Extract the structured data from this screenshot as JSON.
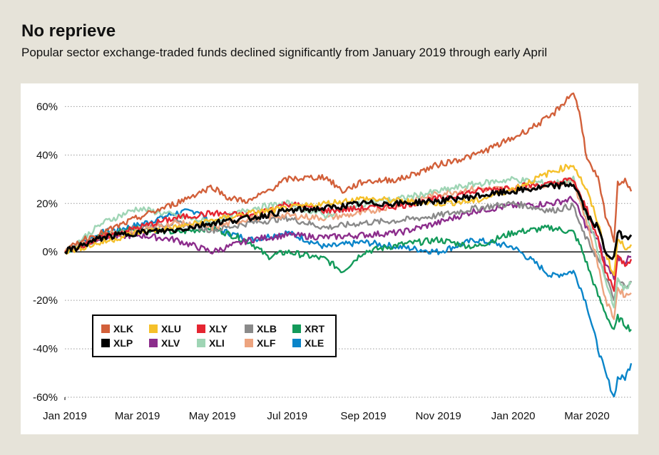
{
  "header": {
    "title": "No reprieve",
    "subtitle": "Popular sector exchange-traded funds declined significantly from January 2019 through early April"
  },
  "chart_data": {
    "type": "line",
    "title": "No reprieve",
    "subtitle": "Popular sector exchange-traded funds declined significantly from January 2019 through early April",
    "xlabel": "",
    "ylabel": "",
    "x_range": [
      "2019-01-01",
      "2020-04-06"
    ],
    "ylim": [
      -60,
      66
    ],
    "y_ticks": [
      60,
      40,
      20,
      0,
      -20,
      -40,
      -60
    ],
    "y_tick_labels": [
      "60%",
      "40%",
      "20%",
      "0%",
      "-20%",
      "-40%",
      "-60%"
    ],
    "x_tick_dates": [
      "2019-01-01",
      "2019-03-01",
      "2019-05-01",
      "2019-07-01",
      "2019-09-01",
      "2019-11-01",
      "2020-01-01",
      "2020-03-01"
    ],
    "x_tick_labels": [
      "Jan 2019",
      "Mar 2019",
      "May 2019",
      "Jul 2019",
      "Sep 2019",
      "Nov 2019",
      "Jan 2020",
      "Mar 2020"
    ],
    "grid": "horizontal dotted",
    "legend_position": "lower-left",
    "series": [
      {
        "name": "XLK",
        "color": "#d2603a",
        "x": [
          "2019-01-01",
          "2019-01-15",
          "2019-02-01",
          "2019-03-01",
          "2019-04-01",
          "2019-05-01",
          "2019-05-15",
          "2019-06-01",
          "2019-07-01",
          "2019-08-01",
          "2019-08-15",
          "2019-09-01",
          "2019-10-01",
          "2019-11-01",
          "2019-12-01",
          "2020-01-01",
          "2020-02-01",
          "2020-02-19",
          "2020-02-25",
          "2020-03-01",
          "2020-03-10",
          "2020-03-16",
          "2020-03-23",
          "2020-03-26",
          "2020-04-01",
          "2020-04-06"
        ],
        "values": [
          0,
          5,
          8,
          14,
          20,
          27,
          22,
          21,
          30,
          31,
          25,
          29,
          30,
          36,
          40,
          47,
          56,
          66,
          55,
          38,
          30,
          15,
          5,
          28,
          30,
          25
        ]
      },
      {
        "name": "XLU",
        "color": "#f5c02a",
        "x": [
          "2019-01-01",
          "2019-02-01",
          "2019-03-01",
          "2019-04-01",
          "2019-05-01",
          "2019-06-01",
          "2019-07-01",
          "2019-08-01",
          "2019-09-01",
          "2019-10-01",
          "2019-11-01",
          "2019-12-01",
          "2020-01-01",
          "2020-02-01",
          "2020-02-19",
          "2020-02-25",
          "2020-03-01",
          "2020-03-10",
          "2020-03-16",
          "2020-03-23",
          "2020-03-26",
          "2020-04-01",
          "2020-04-06"
        ],
        "values": [
          0,
          4,
          8,
          10,
          13,
          16,
          18,
          20,
          22,
          21,
          20,
          21,
          26,
          33,
          36,
          30,
          25,
          12,
          0,
          -10,
          5,
          2,
          3
        ]
      },
      {
        "name": "XLY",
        "color": "#e52531",
        "x": [
          "2019-01-01",
          "2019-02-01",
          "2019-03-01",
          "2019-04-01",
          "2019-05-01",
          "2019-06-01",
          "2019-07-01",
          "2019-08-01",
          "2019-09-01",
          "2019-10-01",
          "2019-11-01",
          "2019-12-01",
          "2020-01-01",
          "2020-02-01",
          "2020-02-19",
          "2020-02-25",
          "2020-03-01",
          "2020-03-10",
          "2020-03-16",
          "2020-03-23",
          "2020-03-26",
          "2020-04-01",
          "2020-04-06"
        ],
        "values": [
          0,
          6,
          10,
          14,
          16,
          15,
          20,
          17,
          18,
          19,
          22,
          25,
          27,
          28,
          30,
          22,
          18,
          5,
          -8,
          -15,
          -2,
          -5,
          -3
        ]
      },
      {
        "name": "XLB",
        "color": "#8a8a8a",
        "x": [
          "2019-01-01",
          "2019-02-01",
          "2019-03-01",
          "2019-04-01",
          "2019-05-01",
          "2019-06-01",
          "2019-07-01",
          "2019-08-01",
          "2019-09-01",
          "2019-10-01",
          "2019-11-01",
          "2019-12-01",
          "2020-01-01",
          "2020-02-01",
          "2020-02-19",
          "2020-02-25",
          "2020-03-01",
          "2020-03-10",
          "2020-03-16",
          "2020-03-23",
          "2020-03-26",
          "2020-04-01",
          "2020-04-06"
        ],
        "values": [
          0,
          6,
          10,
          12,
          9,
          12,
          14,
          10,
          12,
          13,
          15,
          18,
          20,
          17,
          19,
          10,
          5,
          -3,
          -10,
          -20,
          -12,
          -14,
          -12
        ]
      },
      {
        "name": "XRT",
        "color": "#139a5a",
        "x": [
          "2019-01-01",
          "2019-02-01",
          "2019-03-01",
          "2019-04-01",
          "2019-05-01",
          "2019-06-01",
          "2019-06-15",
          "2019-07-01",
          "2019-08-01",
          "2019-08-15",
          "2019-09-01",
          "2019-10-01",
          "2019-11-01",
          "2019-12-01",
          "2020-01-01",
          "2020-02-01",
          "2020-02-19",
          "2020-02-25",
          "2020-03-01",
          "2020-03-10",
          "2020-03-16",
          "2020-03-23",
          "2020-03-26",
          "2020-04-01",
          "2020-04-06"
        ],
        "values": [
          0,
          7,
          10,
          8,
          10,
          4,
          -2,
          0,
          -3,
          -8,
          0,
          3,
          5,
          2,
          8,
          10,
          8,
          2,
          -5,
          -18,
          -25,
          -33,
          -27,
          -30,
          -32
        ]
      },
      {
        "name": "XLP",
        "color": "#000000",
        "x": [
          "2019-01-01",
          "2019-02-01",
          "2019-03-01",
          "2019-04-01",
          "2019-05-01",
          "2019-06-01",
          "2019-07-01",
          "2019-08-01",
          "2019-09-01",
          "2019-10-01",
          "2019-11-01",
          "2019-12-01",
          "2020-01-01",
          "2020-02-01",
          "2020-02-19",
          "2020-02-25",
          "2020-03-01",
          "2020-03-10",
          "2020-03-16",
          "2020-03-23",
          "2020-03-26",
          "2020-04-01",
          "2020-04-06"
        ],
        "values": [
          0,
          6,
          8,
          9,
          12,
          14,
          17,
          18,
          20,
          20,
          21,
          23,
          25,
          27,
          28,
          22,
          15,
          10,
          0,
          -3,
          8,
          6,
          7
        ]
      },
      {
        "name": "XLV",
        "color": "#8c2d8c",
        "x": [
          "2019-01-01",
          "2019-02-01",
          "2019-03-01",
          "2019-04-01",
          "2019-05-01",
          "2019-06-01",
          "2019-07-01",
          "2019-08-01",
          "2019-09-01",
          "2019-10-01",
          "2019-11-01",
          "2019-12-01",
          "2020-01-01",
          "2020-02-01",
          "2020-02-19",
          "2020-02-25",
          "2020-03-01",
          "2020-03-10",
          "2020-03-16",
          "2020-03-23",
          "2020-03-26",
          "2020-04-01",
          "2020-04-06"
        ],
        "values": [
          0,
          6,
          7,
          5,
          0,
          5,
          7,
          6,
          7,
          8,
          12,
          17,
          19,
          20,
          22,
          15,
          10,
          5,
          -5,
          -10,
          -2,
          -4,
          -2
        ]
      },
      {
        "name": "XLI",
        "color": "#9fd5b5",
        "x": [
          "2019-01-01",
          "2019-02-01",
          "2019-03-01",
          "2019-04-01",
          "2019-05-01",
          "2019-06-01",
          "2019-07-01",
          "2019-08-01",
          "2019-09-01",
          "2019-10-01",
          "2019-11-01",
          "2019-12-01",
          "2020-01-01",
          "2020-02-01",
          "2020-02-19",
          "2020-02-25",
          "2020-03-01",
          "2020-03-10",
          "2020-03-16",
          "2020-03-23",
          "2020-03-26",
          "2020-04-01",
          "2020-04-06"
        ],
        "values": [
          0,
          12,
          18,
          15,
          12,
          18,
          20,
          15,
          20,
          22,
          25,
          28,
          30,
          28,
          30,
          22,
          15,
          0,
          -12,
          -22,
          -12,
          -15,
          -13
        ]
      },
      {
        "name": "XLF",
        "color": "#eda47f",
        "x": [
          "2019-01-01",
          "2019-02-01",
          "2019-03-01",
          "2019-04-01",
          "2019-05-01",
          "2019-06-01",
          "2019-07-01",
          "2019-08-01",
          "2019-09-01",
          "2019-10-01",
          "2019-11-01",
          "2019-12-01",
          "2020-01-01",
          "2020-02-01",
          "2020-02-19",
          "2020-02-25",
          "2020-03-01",
          "2020-03-10",
          "2020-03-16",
          "2020-03-23",
          "2020-03-26",
          "2020-04-01",
          "2020-04-06"
        ],
        "values": [
          0,
          7,
          9,
          12,
          10,
          14,
          15,
          14,
          16,
          20,
          24,
          26,
          26,
          28,
          29,
          20,
          12,
          -5,
          -20,
          -27,
          -15,
          -18,
          -17
        ]
      },
      {
        "name": "XLE",
        "color": "#0a85c9",
        "x": [
          "2019-01-01",
          "2019-02-01",
          "2019-03-01",
          "2019-04-01",
          "2019-04-20",
          "2019-05-01",
          "2019-06-01",
          "2019-07-01",
          "2019-08-01",
          "2019-09-01",
          "2019-10-01",
          "2019-11-01",
          "2019-12-01",
          "2020-01-01",
          "2020-01-20",
          "2020-02-01",
          "2020-02-19",
          "2020-02-25",
          "2020-03-01",
          "2020-03-10",
          "2020-03-16",
          "2020-03-23",
          "2020-03-26",
          "2020-04-01",
          "2020-04-06"
        ],
        "values": [
          0,
          8,
          11,
          16,
          17,
          10,
          5,
          8,
          2,
          4,
          2,
          0,
          5,
          2,
          -5,
          -10,
          -8,
          -15,
          -22,
          -40,
          -50,
          -60,
          -52,
          -52,
          -46
        ]
      }
    ]
  }
}
